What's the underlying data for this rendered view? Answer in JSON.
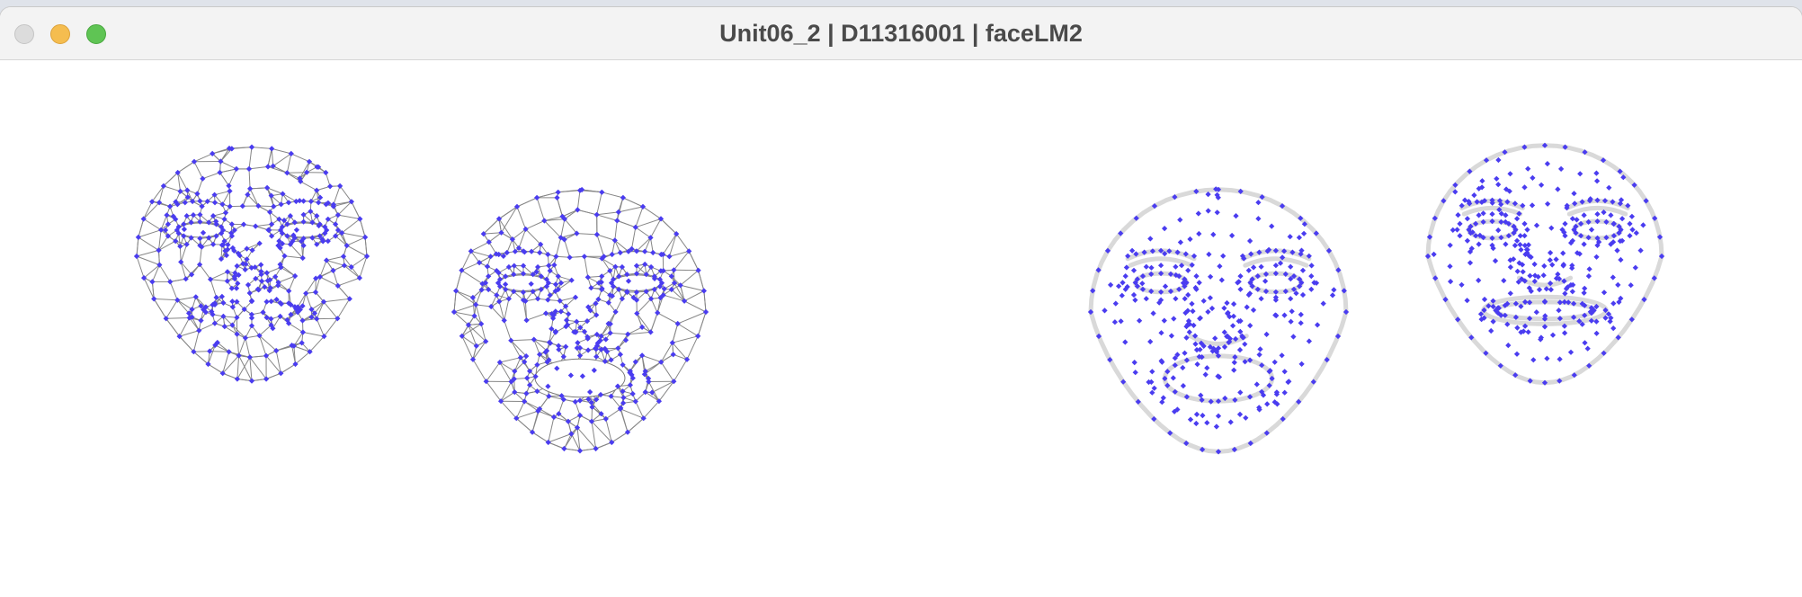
{
  "window": {
    "title": "Unit06_2 | D11316001 | faceLM2",
    "controls": [
      "close-icon",
      "minimize-icon",
      "zoom-icon"
    ]
  },
  "canvas": {
    "mesh_line_color": "#7a7a7a",
    "outline_color": "#d9d9d9",
    "landmark_color": "#4a3cf0",
    "faces": [
      {
        "name": "mesh-face-1",
        "style": "wireframe",
        "expression": "neutral"
      },
      {
        "name": "mesh-face-2",
        "style": "wireframe",
        "expression": "mouth-open"
      },
      {
        "name": "points-face-3",
        "style": "landmarks",
        "expression": "mouth-open"
      },
      {
        "name": "points-face-4",
        "style": "landmarks",
        "expression": "neutral"
      }
    ]
  }
}
